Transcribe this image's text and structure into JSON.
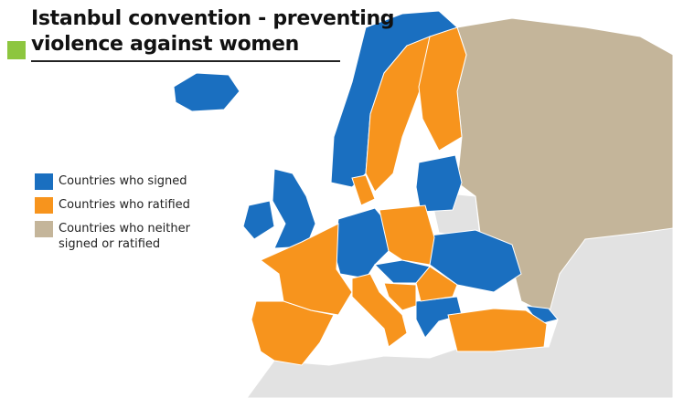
{
  "header": {
    "title_lines": [
      "Istanbul convention - preventing",
      "violence against women"
    ]
  },
  "legend": {
    "items": [
      {
        "label": "Countries who signed",
        "color": "#1a6fc0"
      },
      {
        "label": "Countries who ratified",
        "color": "#f7941d"
      },
      {
        "label": "Countries who neither signed or ratified",
        "color": "#c4b59a"
      }
    ]
  }
}
